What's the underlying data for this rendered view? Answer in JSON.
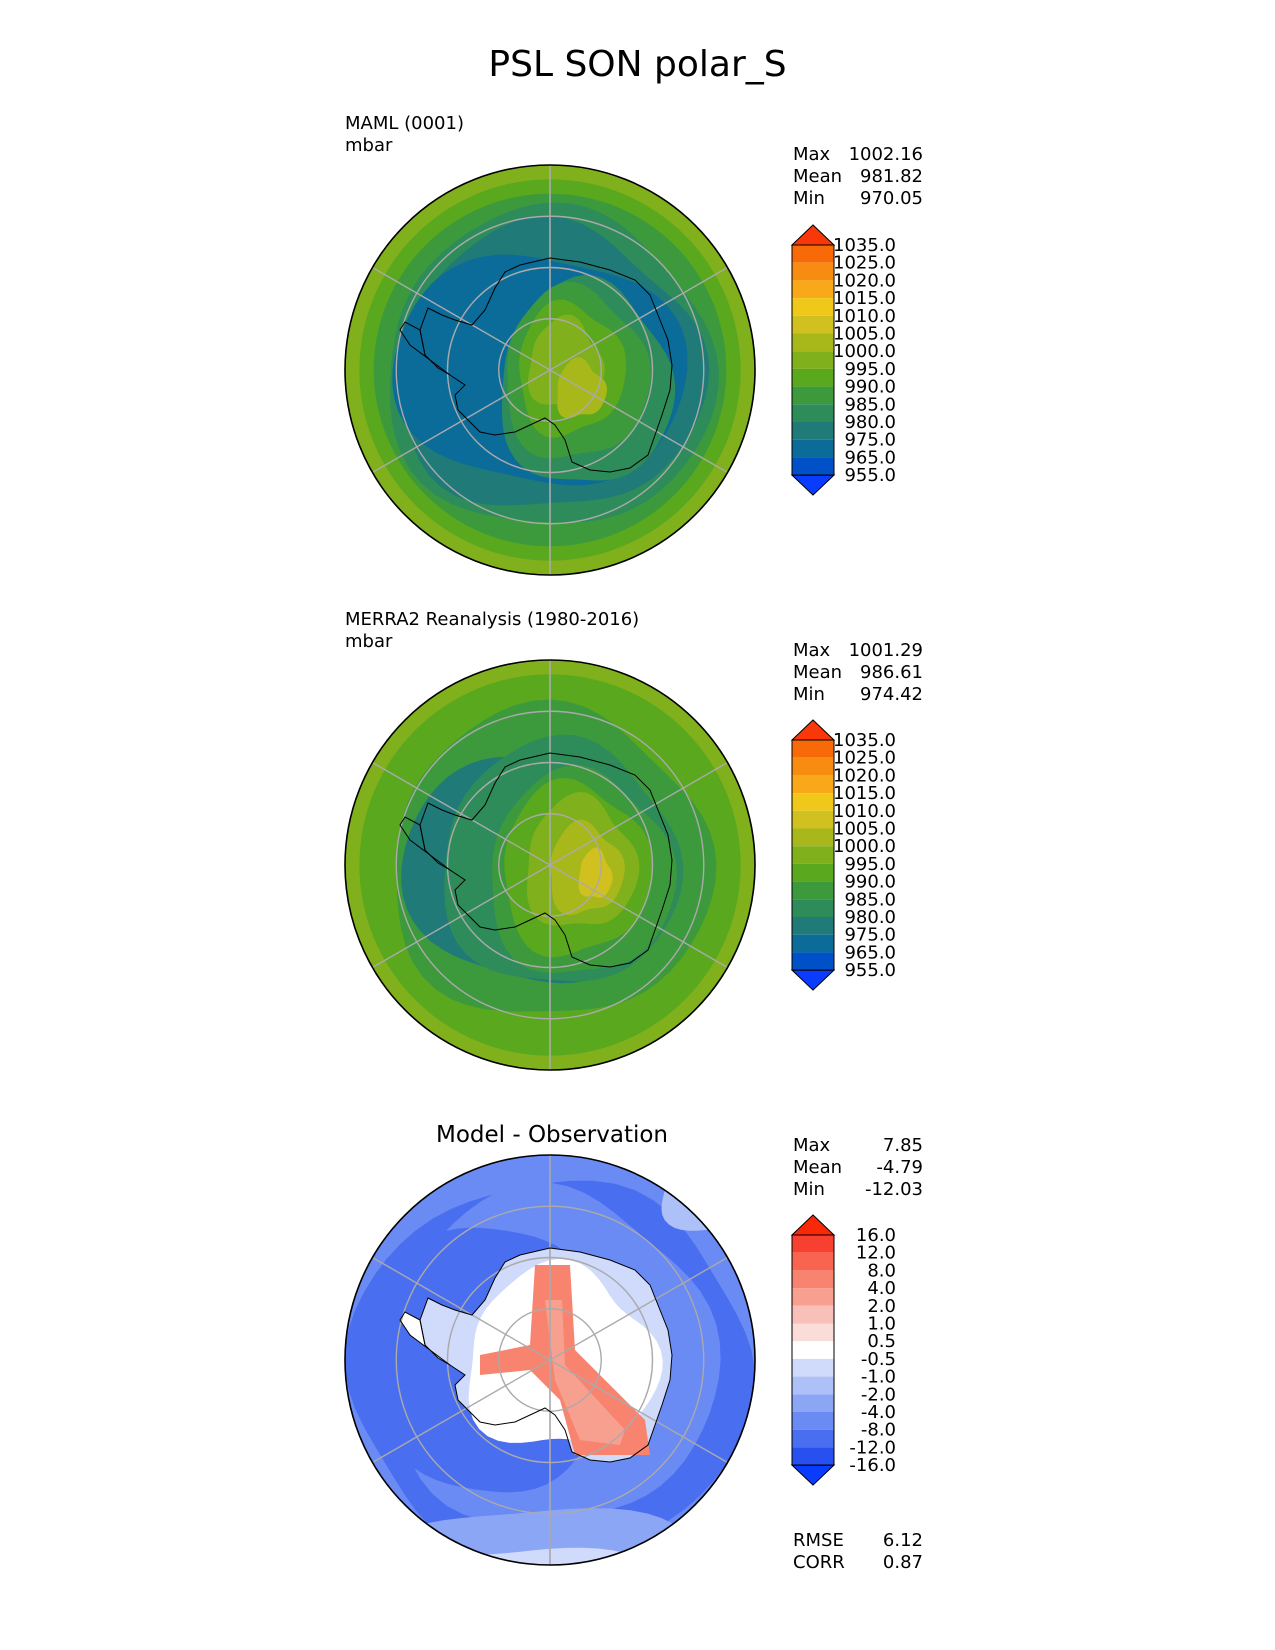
{
  "title": "PSL SON polar_S",
  "panels": [
    {
      "label_line1": "MAML (0001)",
      "label_line2": "mbar",
      "stats": [
        {
          "name": "Max",
          "value": "1002.16"
        },
        {
          "name": "Mean",
          "value": "981.82"
        },
        {
          "name": "Min",
          "value": "970.05"
        }
      ],
      "colorbar_labels": [
        "1035.0",
        "1025.0",
        "1020.0",
        "1015.0",
        "1010.0",
        "1005.0",
        "1000.0",
        "995.0",
        "990.0",
        "985.0",
        "980.0",
        "975.0",
        "965.0",
        "955.0"
      ]
    },
    {
      "label_line1": "MERRA2 Reanalysis (1980-2016)",
      "label_line2": "mbar",
      "stats": [
        {
          "name": "Max",
          "value": "1001.29"
        },
        {
          "name": "Mean",
          "value": "986.61"
        },
        {
          "name": "Min",
          "value": "974.42"
        }
      ],
      "colorbar_labels": [
        "1035.0",
        "1025.0",
        "1020.0",
        "1015.0",
        "1010.0",
        "1005.0",
        "1000.0",
        "995.0",
        "990.0",
        "985.0",
        "980.0",
        "975.0",
        "965.0",
        "955.0"
      ]
    },
    {
      "title": "Model - Observation",
      "stats": [
        {
          "name": "Max",
          "value": "7.85"
        },
        {
          "name": "Mean",
          "value": "-4.79"
        },
        {
          "name": "Min",
          "value": "-12.03"
        }
      ],
      "colorbar_labels": [
        "16.0",
        "12.0",
        "8.0",
        "4.0",
        "2.0",
        "1.0",
        "0.5",
        "-0.5",
        "-1.0",
        "-2.0",
        "-4.0",
        "-8.0",
        "-12.0",
        "-16.0"
      ],
      "extra_stats": [
        {
          "name": "RMSE",
          "value": "6.12"
        },
        {
          "name": "CORR",
          "value": "0.87"
        }
      ]
    }
  ],
  "chart_data": [
    {
      "type": "heatmap",
      "projection": "south-polar-stereographic",
      "colorbar_levels": [
        955,
        965,
        975,
        980,
        985,
        990,
        995,
        1000,
        1005,
        1010,
        1015,
        1020,
        1025,
        1035
      ],
      "colorbar_colors": [
        "#0a3cff",
        "#0050c8",
        "#0b6c9a",
        "#1f7a78",
        "#2e8c5a",
        "#3d9a3c",
        "#5aa81e",
        "#80b01c",
        "#a8b81a",
        "#d0c020",
        "#f0c81a",
        "#f8a818",
        "#f88c10",
        "#f86a08",
        "#f83808"
      ],
      "stats": {
        "max": 1002.16,
        "mean": 981.82,
        "min": 970.05
      }
    },
    {
      "type": "heatmap",
      "projection": "south-polar-stereographic",
      "colorbar_levels": [
        955,
        965,
        975,
        980,
        985,
        990,
        995,
        1000,
        1005,
        1010,
        1015,
        1020,
        1025,
        1035
      ],
      "colorbar_colors": [
        "#0a3cff",
        "#0050c8",
        "#0b6c9a",
        "#1f7a78",
        "#2e8c5a",
        "#3d9a3c",
        "#5aa81e",
        "#80b01c",
        "#a8b81a",
        "#d0c020",
        "#f0c81a",
        "#f8a818",
        "#f88c10",
        "#f86a08",
        "#f83808"
      ],
      "stats": {
        "max": 1001.29,
        "mean": 986.61,
        "min": 974.42
      }
    },
    {
      "type": "heatmap",
      "projection": "south-polar-stereographic",
      "colorbar_levels": [
        -16,
        -12,
        -8,
        -4,
        -2,
        -1,
        -0.5,
        0.5,
        1,
        2,
        4,
        8,
        12,
        16
      ],
      "colorbar_colors": [
        "#0a3cff",
        "#2850f0",
        "#4a6ef0",
        "#6a8af4",
        "#8ca6f6",
        "#aec0f8",
        "#d0dafa",
        "#ffffff",
        "#fadcd8",
        "#f8c0b8",
        "#f8a090",
        "#f88470",
        "#f86450",
        "#f84030",
        "#f82808"
      ],
      "stats": {
        "max": 7.85,
        "mean": -4.79,
        "min": -12.03,
        "rmse": 6.12,
        "corr": 0.87
      }
    }
  ]
}
